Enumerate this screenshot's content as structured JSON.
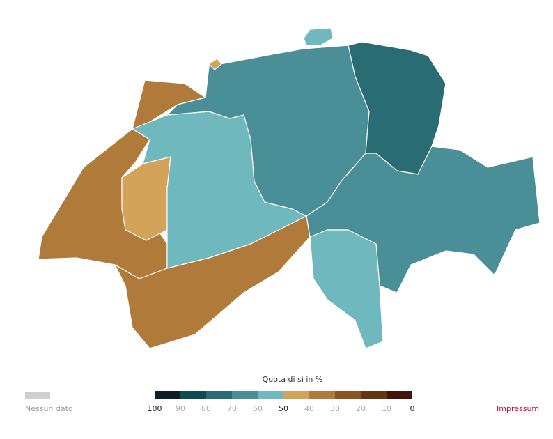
{
  "map": {
    "regions": [
      {
        "fill": "#b07b3a"
      },
      {
        "fill": "#d4a35a"
      },
      {
        "fill": "#b07b3a"
      },
      {
        "fill": "#6fb8be"
      },
      {
        "fill": "#4a8f98"
      },
      {
        "fill": "#2a6c74"
      },
      {
        "fill": "#4a8f98"
      },
      {
        "fill": "#6fb8be"
      },
      {
        "fill": "#6fb8be"
      },
      {
        "fill": "#d4a35a"
      }
    ]
  },
  "legend": {
    "title": "Quota di sì in %",
    "no_data_label": "Nessun dato",
    "no_data_color": "#cfcfcf",
    "colors": [
      "#0d1f26",
      "#0e4a50",
      "#2a6c74",
      "#4a8f98",
      "#6fb8be",
      "#d4a35a",
      "#b07b3a",
      "#8a5520",
      "#633511",
      "#42150a"
    ],
    "ticks": [
      "100",
      "90",
      "80",
      "70",
      "60",
      "50",
      "40",
      "30",
      "20",
      "10",
      "0"
    ]
  },
  "footer": {
    "impressum": "Impressum"
  }
}
